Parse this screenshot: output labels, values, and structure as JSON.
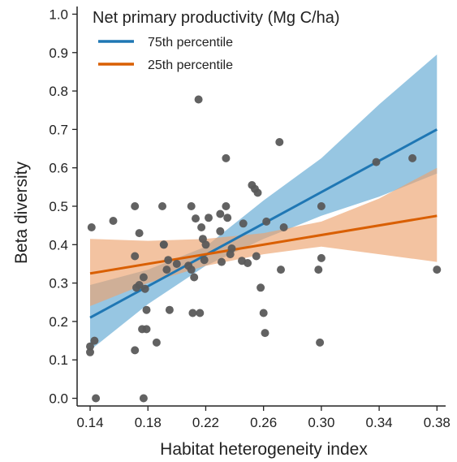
{
  "chart_data": {
    "type": "scatter",
    "title": "",
    "xlabel": "Habitat heterogeneity index",
    "ylabel": "Beta diversity",
    "xlim": [
      0.131,
      0.386
    ],
    "ylim": [
      -0.02,
      1.02
    ],
    "xticks": [
      "0.14",
      "0.18",
      "0.22",
      "0.26",
      "0.30",
      "0.34",
      "0.38"
    ],
    "yticks": [
      "0.0",
      "0.1",
      "0.2",
      "0.3",
      "0.4",
      "0.5",
      "0.6",
      "0.7",
      "0.8",
      "0.9",
      "1.0"
    ],
    "legend": {
      "title": "Net primary productivity (Mg C/ha)",
      "position": "top-left"
    },
    "series": [
      {
        "name": "75th percentile",
        "color": "#1f77b4",
        "band_color": "#6baed6",
        "line": [
          [
            0.14,
            0.21
          ],
          [
            0.38,
            0.7
          ]
        ],
        "band": {
          "x": [
            0.14,
            0.18,
            0.22,
            0.26,
            0.3,
            0.34,
            0.38
          ],
          "lower": [
            0.125,
            0.245,
            0.345,
            0.415,
            0.475,
            0.525,
            0.585
          ],
          "upper": [
            0.295,
            0.335,
            0.395,
            0.515,
            0.625,
            0.765,
            0.895
          ]
        }
      },
      {
        "name": "25th percentile",
        "color": "#d95f02",
        "band_color": "#eda36e",
        "line": [
          [
            0.14,
            0.325
          ],
          [
            0.38,
            0.475
          ]
        ],
        "band": {
          "x": [
            0.14,
            0.18,
            0.22,
            0.26,
            0.3,
            0.34,
            0.38
          ],
          "lower": [
            0.24,
            0.3,
            0.345,
            0.375,
            0.395,
            0.375,
            0.355
          ],
          "upper": [
            0.415,
            0.41,
            0.415,
            0.43,
            0.46,
            0.52,
            0.6
          ]
        }
      }
    ],
    "points": {
      "color": "#5a5a5a",
      "x": [
        0.141,
        0.14,
        0.14,
        0.143,
        0.144,
        0.156,
        0.171,
        0.171,
        0.171,
        0.172,
        0.174,
        0.174,
        0.176,
        0.177,
        0.177,
        0.178,
        0.179,
        0.179,
        0.186,
        0.19,
        0.191,
        0.191,
        0.193,
        0.194,
        0.195,
        0.2,
        0.208,
        0.21,
        0.21,
        0.211,
        0.212,
        0.213,
        0.215,
        0.216,
        0.217,
        0.218,
        0.219,
        0.22,
        0.222,
        0.23,
        0.23,
        0.231,
        0.234,
        0.234,
        0.235,
        0.237,
        0.238,
        0.245,
        0.246,
        0.249,
        0.252,
        0.254,
        0.255,
        0.256,
        0.258,
        0.26,
        0.261,
        0.262,
        0.271,
        0.272,
        0.274,
        0.298,
        0.299,
        0.3,
        0.3,
        0.338,
        0.363,
        0.38
      ],
      "y": [
        0.445,
        0.135,
        0.12,
        0.15,
        0.0,
        0.462,
        0.5,
        0.37,
        0.125,
        0.288,
        0.295,
        0.43,
        0.18,
        0.0,
        0.315,
        0.285,
        0.18,
        0.23,
        0.145,
        0.5,
        0.4,
        0.4,
        0.335,
        0.36,
        0.23,
        0.35,
        0.345,
        0.5,
        0.335,
        0.222,
        0.315,
        0.468,
        0.778,
        0.222,
        0.445,
        0.415,
        0.36,
        0.4,
        0.47,
        0.48,
        0.435,
        0.355,
        0.5,
        0.625,
        0.47,
        0.375,
        0.39,
        0.358,
        0.455,
        0.352,
        0.555,
        0.545,
        0.37,
        0.535,
        0.288,
        0.222,
        0.17,
        0.46,
        0.667,
        0.335,
        0.445,
        0.335,
        0.145,
        0.365,
        0.5,
        0.615,
        0.625,
        0.335
      ]
    }
  }
}
